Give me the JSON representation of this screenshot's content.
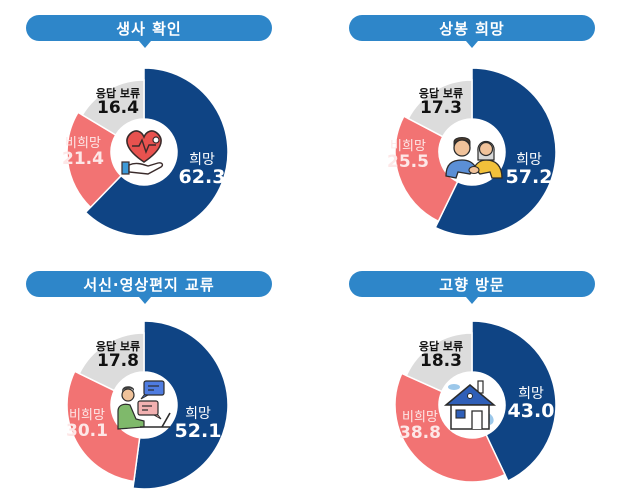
{
  "colors": {
    "hope": "#0f4484",
    "no_hope": "#f27373",
    "undecided": "#dcdcdc",
    "banner": "#2e86c9"
  },
  "labels": {
    "hope": "희망",
    "no_hope": "비희망",
    "undecided": "응답 보류"
  },
  "chart_data": [
    {
      "type": "pie",
      "title": "생사 확인",
      "icon": "heart-in-hand-icon",
      "categories": [
        "희망",
        "비희망",
        "응답 보류"
      ],
      "values": [
        62.3,
        21.4,
        16.4
      ],
      "values_text": [
        "62.3",
        "21.4",
        "16.4"
      ],
      "donut": true
    },
    {
      "type": "pie",
      "title": "상봉 희망",
      "icon": "two-people-handshake-icon",
      "categories": [
        "희망",
        "비희망",
        "응답 보류"
      ],
      "values": [
        57.2,
        25.5,
        17.3
      ],
      "values_text": [
        "57.2",
        "25.5",
        "17.3"
      ],
      "donut": true
    },
    {
      "type": "pie",
      "title": "서신·영상편지 교류",
      "icon": "person-laptop-messages-icon",
      "categories": [
        "희망",
        "비희망",
        "응답 보류"
      ],
      "values": [
        52.1,
        30.1,
        17.8
      ],
      "values_text": [
        "52.1",
        "30.1",
        "17.8"
      ],
      "donut": true
    },
    {
      "type": "pie",
      "title": "고향 방문",
      "icon": "house-icon",
      "categories": [
        "희망",
        "비희망",
        "응답 보류"
      ],
      "values": [
        43.0,
        38.8,
        18.3
      ],
      "values_text": [
        "43.0",
        "38.8",
        "18.3"
      ],
      "donut": true
    }
  ]
}
